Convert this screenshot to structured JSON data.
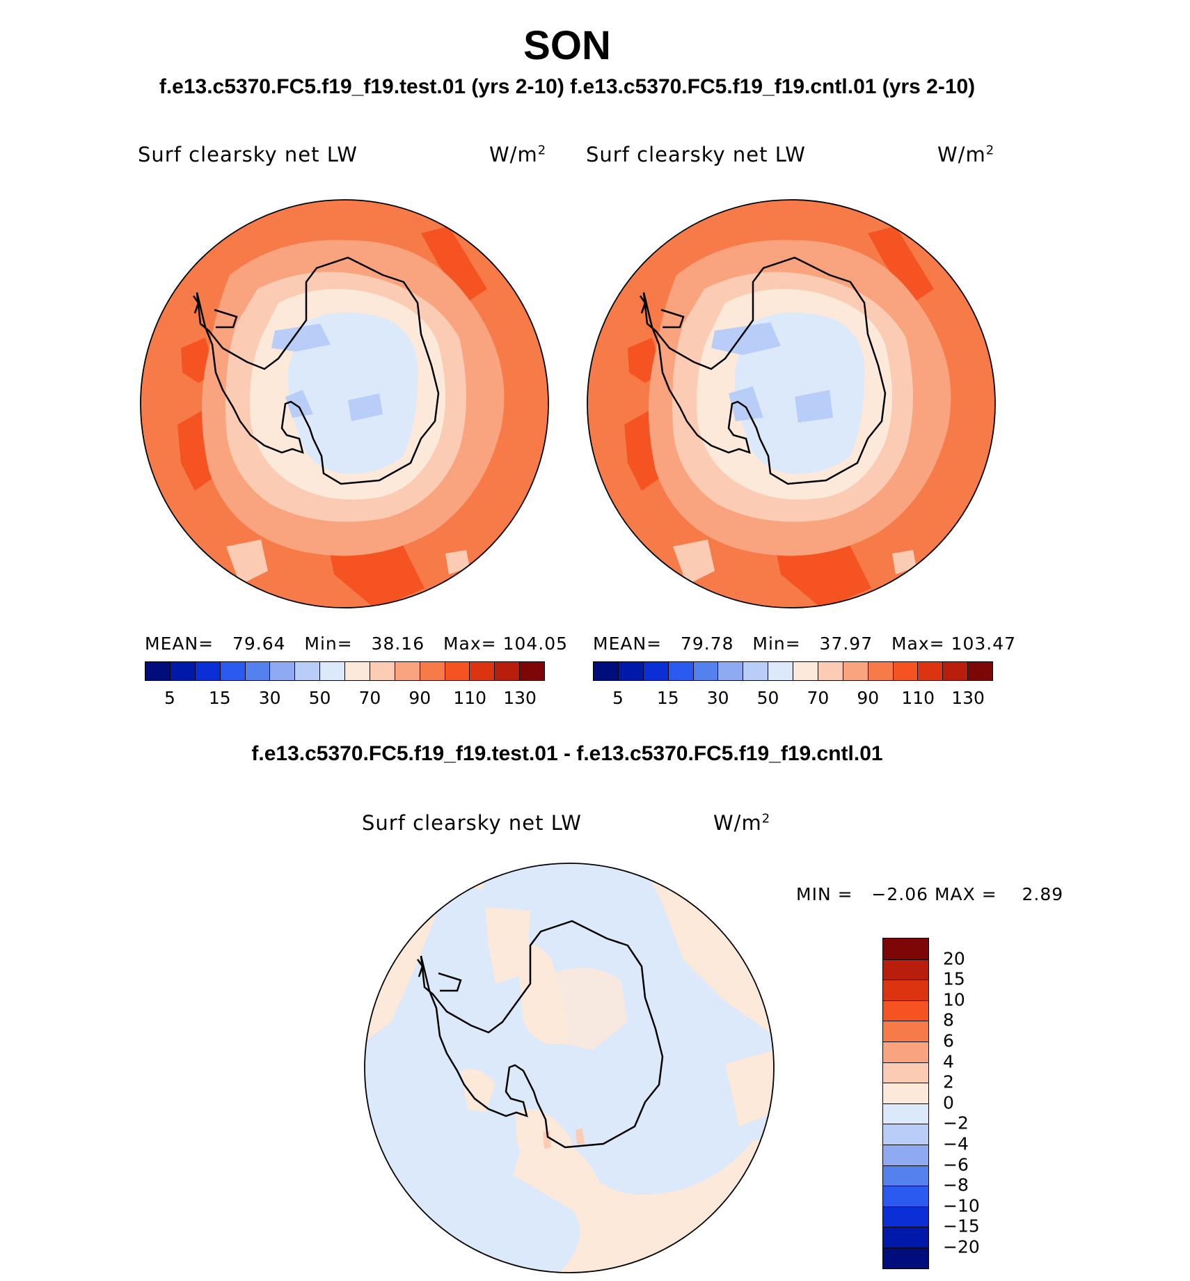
{
  "season": "SON",
  "subtitle": "f.e13.c5370.FC5.f19_f19.test.01 (yrs 2-10) f.e13.c5370.FC5.f19_f19.cntl.01 (yrs 2-10)",
  "diff_title": "f.e13.c5370.FC5.f19_f19.test.01 - f.e13.c5370.FC5.f19_f19.cntl.01",
  "variable": "Surf clearsky net LW",
  "units": "W/m",
  "units_exp": "2",
  "panels": {
    "test": {
      "mean_label": "MEAN=",
      "mean": "79.64",
      "min_label": "Min=",
      "min": "38.16",
      "max_label": "Max=",
      "max": "104.05"
    },
    "cntl": {
      "mean_label": "MEAN=",
      "mean": "79.78",
      "min_label": "Min=",
      "min": "37.97",
      "max_label": "Max=",
      "max": "103.47"
    },
    "diff": {
      "min_label": "MIN =",
      "min": "−2.06",
      "max_label": "MAX =",
      "max": "2.89"
    }
  },
  "abs_colorbar": {
    "colors": [
      "#000e7c",
      "#0019a8",
      "#0a2fd6",
      "#2a5af0",
      "#5382ef",
      "#8eabf2",
      "#b8cdf7",
      "#dbe9fb",
      "#fce9d9",
      "#fbccb3",
      "#f9a47e",
      "#f77b48",
      "#f55321",
      "#dc3410",
      "#b81e0b",
      "#7d0606"
    ],
    "tick_labels": [
      "5",
      "15",
      "30",
      "50",
      "70",
      "90",
      "110",
      "130"
    ]
  },
  "diff_colorbar": {
    "colors": [
      "#7d0606",
      "#b81e0b",
      "#dc3410",
      "#f55321",
      "#f77b48",
      "#f9a47e",
      "#fbccb3",
      "#fce9d9",
      "#dbe9fb",
      "#b8cdf7",
      "#8eabf2",
      "#5382ef",
      "#2a5af0",
      "#0a2fd6",
      "#0019a8",
      "#000e7c"
    ],
    "tick_labels": [
      "20",
      "15",
      "10",
      "8",
      "6",
      "4",
      "2",
      "0",
      "−2",
      "−4",
      "−6",
      "−8",
      "−10",
      "−15",
      "−20"
    ]
  }
}
